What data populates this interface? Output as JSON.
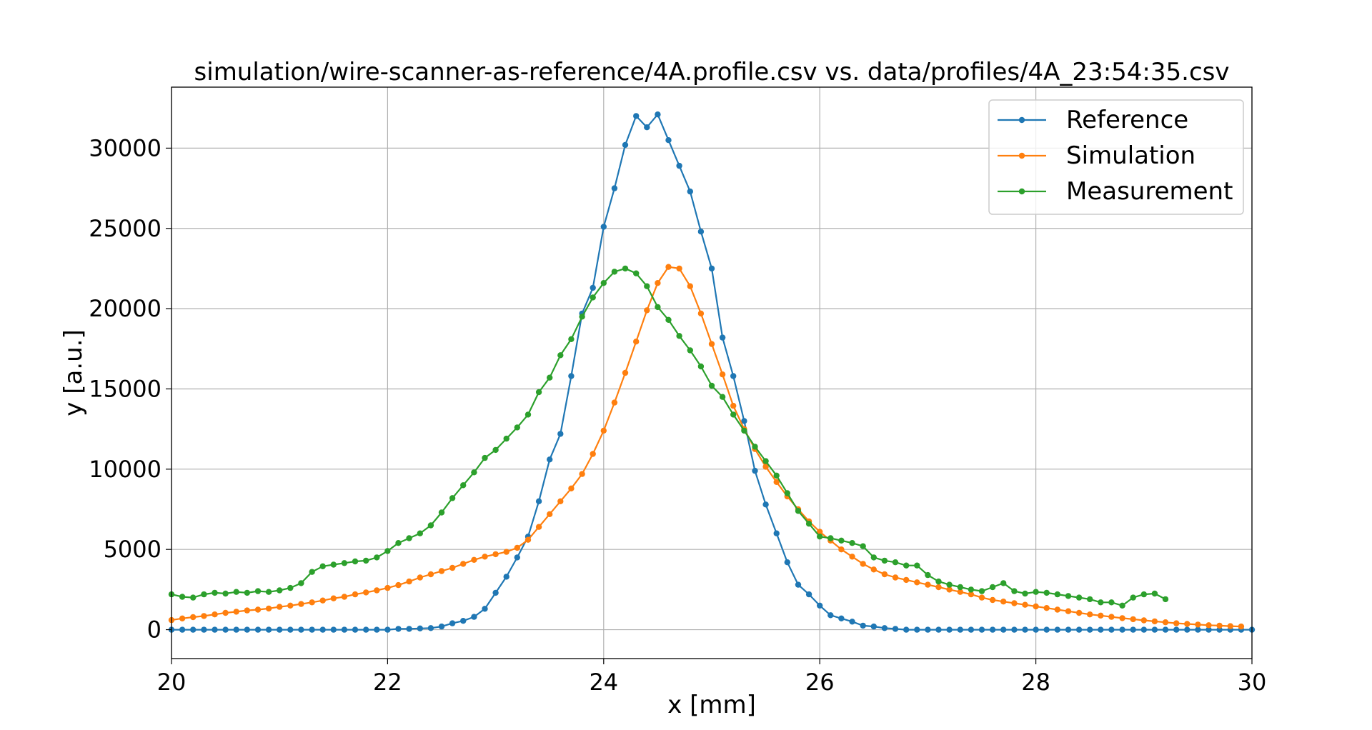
{
  "chart_data": {
    "type": "line",
    "title": "simulation/wire-scanner-as-reference/4A.profile.csv vs. data/profiles/4A_23:54:35.csv",
    "xlabel": "x [mm]",
    "ylabel": "y [a.u.]",
    "xlim": [
      20,
      30
    ],
    "ylim": [
      -1800,
      33800
    ],
    "xticks": [
      20,
      22,
      24,
      26,
      28,
      30
    ],
    "yticks": [
      0,
      5000,
      10000,
      15000,
      20000,
      25000,
      30000
    ],
    "grid": true,
    "legend_position": "top-right",
    "x_step": 0.1,
    "series": [
      {
        "name": "Reference",
        "color": "#1f77b4",
        "values": [
          0,
          0,
          0,
          0,
          0,
          0,
          0,
          0,
          0,
          0,
          0,
          0,
          0,
          0,
          0,
          0,
          0,
          0,
          0,
          0,
          0,
          50,
          50,
          80,
          100,
          200,
          400,
          550,
          800,
          1300,
          2300,
          3300,
          4500,
          5800,
          8000,
          10600,
          12200,
          15800,
          19700,
          21300,
          25100,
          27500,
          30200,
          32000,
          31300,
          32100,
          30500,
          28900,
          27300,
          24800,
          22500,
          18200,
          15800,
          13000,
          9900,
          7800,
          6000,
          4200,
          2800,
          2200,
          1500,
          900,
          700,
          500,
          250,
          200,
          100,
          50,
          0,
          0,
          0,
          0,
          0,
          0,
          0,
          0,
          0,
          0,
          0,
          0,
          0,
          0,
          0,
          0,
          0,
          0,
          0,
          0,
          0,
          0,
          0,
          0,
          0,
          0,
          0,
          0,
          0,
          0,
          0,
          0,
          0
        ]
      },
      {
        "name": "Simulation",
        "color": "#ff7f0e",
        "values": [
          600,
          700,
          780,
          850,
          950,
          1050,
          1120,
          1200,
          1250,
          1320,
          1420,
          1500,
          1600,
          1700,
          1820,
          1950,
          2050,
          2200,
          2320,
          2450,
          2600,
          2780,
          3000,
          3250,
          3450,
          3650,
          3850,
          4100,
          4350,
          4550,
          4700,
          4850,
          5100,
          5600,
          6400,
          7200,
          8000,
          8800,
          9700,
          10950,
          12400,
          14150,
          16000,
          17950,
          19900,
          21600,
          22600,
          22500,
          21400,
          19700,
          17800,
          15900,
          13950,
          12500,
          11250,
          10150,
          9200,
          8300,
          7500,
          6750,
          6100,
          5550,
          5000,
          4550,
          4100,
          3750,
          3450,
          3250,
          3100,
          2950,
          2800,
          2650,
          2500,
          2350,
          2200,
          2000,
          1850,
          1750,
          1650,
          1550,
          1450,
          1350,
          1250,
          1150,
          1050,
          950,
          880,
          800,
          720,
          650,
          580,
          520,
          460,
          400,
          360,
          320,
          280,
          250,
          220,
          200
        ]
      },
      {
        "name": "Measurement",
        "color": "#2ca02c",
        "values": [
          2200,
          2050,
          2000,
          2200,
          2300,
          2250,
          2350,
          2300,
          2400,
          2350,
          2450,
          2600,
          2900,
          3600,
          3950,
          4050,
          4150,
          4250,
          4300,
          4500,
          4900,
          5400,
          5700,
          6000,
          6500,
          7300,
          8200,
          9000,
          9800,
          10700,
          11200,
          11900,
          12600,
          13400,
          14800,
          15700,
          17100,
          18100,
          19500,
          20700,
          21600,
          22300,
          22500,
          22200,
          21400,
          20100,
          19300,
          18300,
          17400,
          16400,
          15200,
          14500,
          13400,
          12400,
          11400,
          10500,
          9600,
          8500,
          7400,
          6600,
          5800,
          5700,
          5550,
          5400,
          5200,
          4500,
          4300,
          4200,
          4000,
          4000,
          3400,
          3000,
          2800,
          2650,
          2500,
          2400,
          2650,
          2900,
          2400,
          2250,
          2350,
          2300,
          2200,
          2100,
          2000,
          1900,
          1700,
          1700,
          1500,
          2000,
          2200,
          2250,
          1900
        ]
      }
    ]
  }
}
